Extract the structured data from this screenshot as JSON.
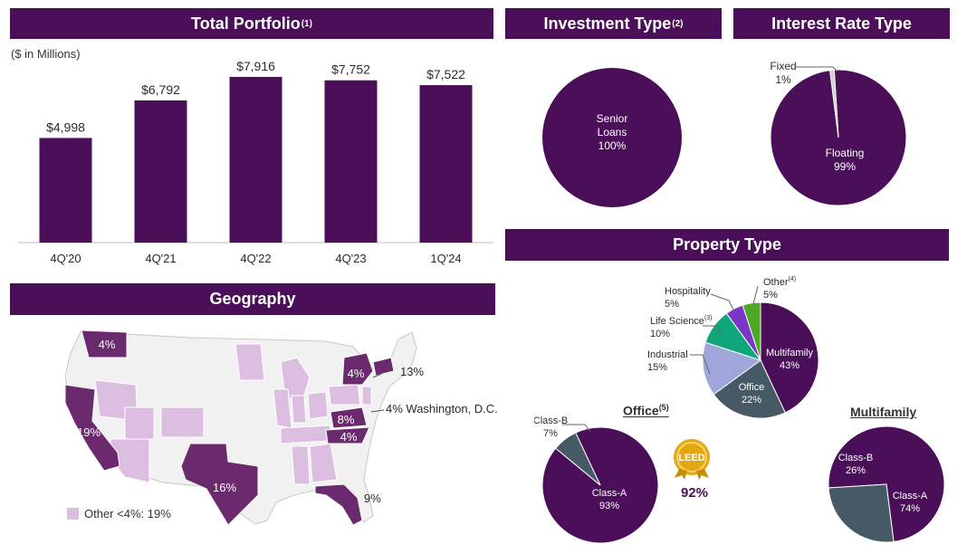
{
  "banners": {
    "total_portfolio": "Total Portfolio",
    "total_portfolio_sup": "(1)",
    "investment_type": "Investment Type",
    "investment_type_sup": "(2)",
    "interest_rate_type": "Interest Rate Type",
    "property_type": "Property Type",
    "geography": "Geography"
  },
  "units_note": "($ in Millions)",
  "colors": {
    "primary": "#4a0f58",
    "slate": "#455a64",
    "lavender_light": "#dcbfe0",
    "periwinkle": "#9fa6d9",
    "teal": "#0ea67a",
    "violet": "#7b35c7",
    "green": "#4fa823"
  },
  "chart_data": [
    {
      "type": "bar",
      "title": "Total Portfolio",
      "categories": [
        "4Q'20",
        "4Q'21",
        "4Q'22",
        "4Q'23",
        "1Q'24"
      ],
      "values": [
        4998,
        6792,
        7916,
        7752,
        7522
      ],
      "value_labels": [
        "$4,998",
        "$6,792",
        "$7,916",
        "$7,752",
        "$7,522"
      ],
      "ylabel": "($ in Millions)",
      "grid": false
    },
    {
      "type": "pie",
      "title": "Investment Type",
      "slices": [
        {
          "label_lines": [
            "Senior",
            "Loans",
            "100%"
          ],
          "value": 100
        }
      ]
    },
    {
      "type": "pie",
      "title": "Interest Rate Type",
      "slices": [
        {
          "label_lines": [
            "Floating",
            "99%"
          ],
          "value": 99
        },
        {
          "label_lines": [
            "Fixed",
            "1%"
          ],
          "value": 1
        }
      ]
    },
    {
      "type": "pie",
      "title": "Property Type",
      "slices": [
        {
          "label_lines": [
            "Multifamily",
            "43%"
          ],
          "value": 43
        },
        {
          "label_lines": [
            "Office",
            "22%"
          ],
          "value": 22
        },
        {
          "label_lines": [
            "Industrial",
            "15%"
          ],
          "value": 15
        },
        {
          "label_lines": [
            "Life Science",
            "10%"
          ],
          "value": 10,
          "note": "(3)"
        },
        {
          "label_lines": [
            "Hospitality",
            "5%"
          ],
          "value": 5
        },
        {
          "label_lines": [
            "Other",
            "5%"
          ],
          "value": 5,
          "note": "(4)"
        }
      ]
    },
    {
      "type": "pie",
      "title": "Office",
      "title_sup": "(5)",
      "slices": [
        {
          "label_lines": [
            "Class-A",
            "93%"
          ],
          "value": 93
        },
        {
          "label_lines": [
            "Class-B",
            "7%"
          ],
          "value": 7
        }
      ]
    },
    {
      "type": "pie",
      "title": "Multifamily",
      "slices": [
        {
          "label_lines": [
            "Class-A",
            "74%"
          ],
          "value": 74
        },
        {
          "label_lines": [
            "Class-B",
            "26%"
          ],
          "value": 26
        }
      ]
    }
  ],
  "leed": {
    "badge_text": "LEED",
    "percent": "92%"
  },
  "geography": {
    "labels": {
      "wa": "4%",
      "ca": "19%",
      "tx": "16%",
      "fl": "9%",
      "ny": "4%",
      "ma": "13%",
      "dc": "4% Washington, D.C.",
      "va": "8%",
      "nc": "4%"
    },
    "legend_other": "Other <4%: 19%"
  }
}
